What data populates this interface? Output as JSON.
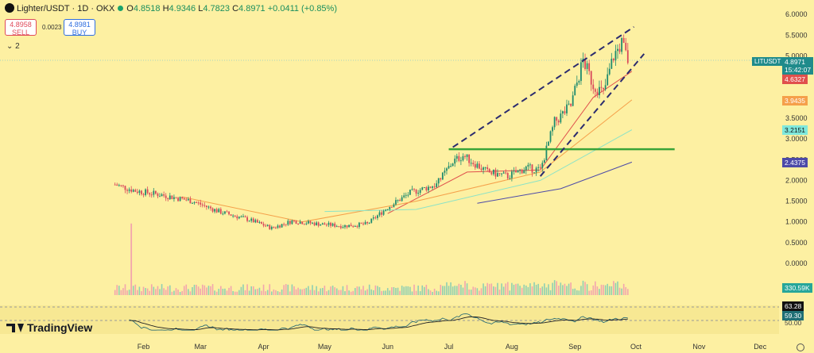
{
  "header": {
    "title": "Lighter/USDT · 1D · OKX",
    "ohlc": {
      "o_label": "O",
      "o": "4.8518",
      "h_label": "H",
      "h": "4.9346",
      "l_label": "L",
      "l": "4.7823",
      "c_label": "C",
      "c": "4.8971",
      "change": "+0.0411 (+0.85%)"
    },
    "sell_price": "4.8958",
    "sell_label": "SELL",
    "spread": "0.0023",
    "buy_price": "4.8981",
    "buy_label": "BUY",
    "indicator_toggle": "⌄ 2"
  },
  "brand": {
    "name": "TradingView"
  },
  "price_tags": {
    "symbol": "LITUSDT",
    "last_price": "4.8971",
    "countdown": "15:42:07",
    "ma_fast": "4.6327",
    "ma_mid": "3.9435",
    "ma_slow": "3.2151",
    "ma_long": "2.4375",
    "volume": "330.59K",
    "rsi": "63.28",
    "rsi_ma": "59.30",
    "rsi_mid_label": "50.00"
  },
  "colors": {
    "background": "#fdf0a2",
    "candle_up": "#1f8b6e",
    "candle_down": "#d9485b",
    "ma_fast": "#e0504c",
    "ma_mid": "#f5a04a",
    "ma_slow": "#8ce3c6",
    "ma_long": "#4c4aa8",
    "support_line": "#3aa338",
    "channel": "#2b2b6e",
    "last_price": "#1f8b8b"
  },
  "chart_data": {
    "type": "candlestick",
    "price_ylim": [
      0,
      6
    ],
    "price_ticks": [
      "6.0000",
      "5.5000",
      "5.0000",
      "3.5000",
      "3.0000",
      "2.5000",
      "2.0000",
      "1.5000",
      "1.0000",
      "0.5000",
      "0.0000"
    ],
    "x_ticks": [
      "Feb",
      "Mar",
      "Apr",
      "May",
      "Jun",
      "Jul",
      "Aug",
      "Sep",
      "Oct",
      "Nov",
      "Dec"
    ],
    "price_path": [
      {
        "date": "2025-01-18",
        "close": 1.9
      },
      {
        "date": "2025-01-28",
        "close": 1.75
      },
      {
        "date": "2025-02-10",
        "close": 1.65
      },
      {
        "date": "2025-02-25",
        "close": 1.5
      },
      {
        "date": "2025-03-10",
        "close": 1.25
      },
      {
        "date": "2025-03-25",
        "close": 1.05
      },
      {
        "date": "2025-04-05",
        "close": 0.85
      },
      {
        "date": "2025-04-15",
        "close": 1.02
      },
      {
        "date": "2025-04-28",
        "close": 0.95
      },
      {
        "date": "2025-05-10",
        "close": 0.9
      },
      {
        "date": "2025-05-22",
        "close": 0.95
      },
      {
        "date": "2025-06-01",
        "close": 1.35
      },
      {
        "date": "2025-06-12",
        "close": 1.7
      },
      {
        "date": "2025-06-25",
        "close": 1.9
      },
      {
        "date": "2025-07-03",
        "close": 2.45
      },
      {
        "date": "2025-07-08",
        "close": 2.6
      },
      {
        "date": "2025-07-20",
        "close": 2.2
      },
      {
        "date": "2025-07-30",
        "close": 2.1
      },
      {
        "date": "2025-08-08",
        "close": 2.3
      },
      {
        "date": "2025-08-15",
        "close": 2.25
      },
      {
        "date": "2025-08-22",
        "close": 3.4
      },
      {
        "date": "2025-08-30",
        "close": 3.8
      },
      {
        "date": "2025-09-05",
        "close": 4.9
      },
      {
        "date": "2025-09-10",
        "close": 4.3
      },
      {
        "date": "2025-09-15",
        "close": 4.1
      },
      {
        "date": "2025-09-20",
        "close": 5.0
      },
      {
        "date": "2025-09-24",
        "close": 5.3
      },
      {
        "date": "2025-09-27",
        "close": 4.9
      }
    ],
    "support_level": 2.75,
    "support_range": [
      "2025-07-01",
      "2025-10-20"
    ],
    "channel_upper": [
      {
        "date": "2025-07-03",
        "price": 2.8
      },
      {
        "date": "2025-09-30",
        "price": 5.7
      }
    ],
    "channel_lower": [
      {
        "date": "2025-08-15",
        "price": 2.1
      },
      {
        "date": "2025-10-05",
        "price": 5.05
      }
    ],
    "moving_averages": [
      {
        "key": "ma_fast",
        "points": [
          {
            "date": "2025-06-01",
            "price": 1.2
          },
          {
            "date": "2025-07-10",
            "price": 2.2
          },
          {
            "date": "2025-08-15",
            "price": 2.25
          },
          {
            "date": "2025-09-10",
            "price": 4.0
          },
          {
            "date": "2025-09-29",
            "price": 4.63
          }
        ]
      },
      {
        "key": "ma_mid",
        "points": [
          {
            "date": "2025-02-20",
            "price": 1.6
          },
          {
            "date": "2025-04-20",
            "price": 1.0
          },
          {
            "date": "2025-06-15",
            "price": 1.5
          },
          {
            "date": "2025-08-15",
            "price": 2.2
          },
          {
            "date": "2025-09-29",
            "price": 3.94
          }
        ]
      },
      {
        "key": "ma_slow",
        "points": [
          {
            "date": "2025-05-01",
            "price": 1.25
          },
          {
            "date": "2025-06-15",
            "price": 1.3
          },
          {
            "date": "2025-08-15",
            "price": 2.0
          },
          {
            "date": "2025-09-29",
            "price": 3.22
          }
        ]
      },
      {
        "key": "ma_long",
        "points": [
          {
            "date": "2025-07-15",
            "price": 1.45
          },
          {
            "date": "2025-08-25",
            "price": 1.8
          },
          {
            "date": "2025-09-29",
            "price": 2.44
          }
        ]
      }
    ],
    "volume_spike": {
      "date": "2025-01-26",
      "relative": 0.95
    }
  }
}
